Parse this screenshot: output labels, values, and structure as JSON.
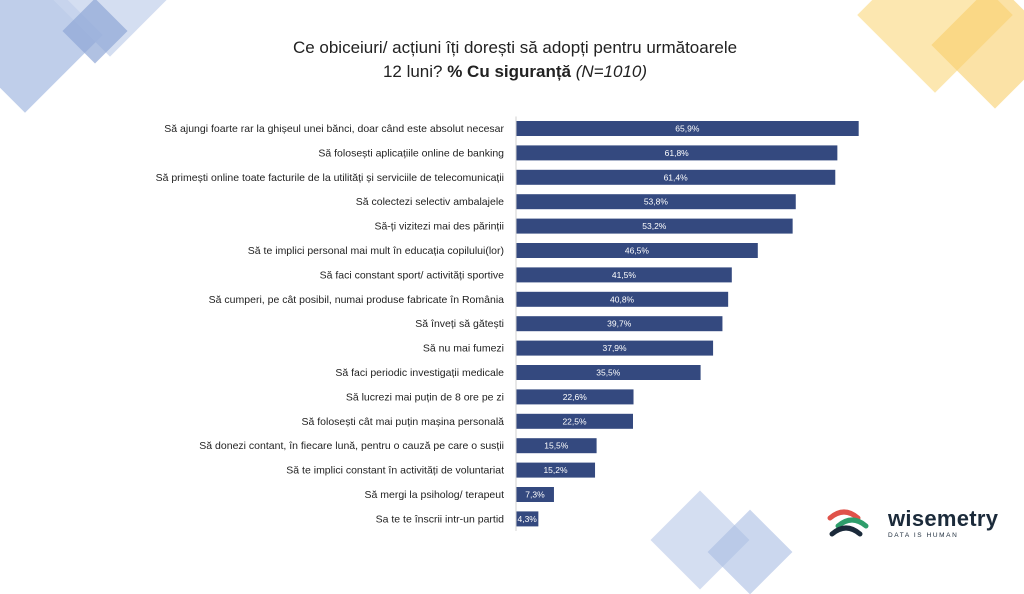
{
  "title": {
    "line1": "Ce obiceiuri/ acțiuni îți dorești să adopți pentru următoarele",
    "line2_prefix": "12 luni? ",
    "line2_bold": "% Cu siguranță",
    "line2_italic": " (N=1010)"
  },
  "chart_data": {
    "type": "bar",
    "orientation": "horizontal",
    "bar_color": "#34497f",
    "categories": [
      "Să ajungi foarte rar la ghișeul unei bănci, doar când este absolut necesar",
      "Să folosești aplicațiile online de banking",
      "Să primești online toate facturile de la utilități și serviciile de telecomunicații",
      "Să colectezi selectiv ambalajele",
      "Să-ți vizitezi mai des părinții",
      "Să te implici personal mai mult în educația copilului(lor)",
      "Să faci constant sport/ activități sportive",
      "Să cumperi, pe cât posibil, numai produse fabricate în România",
      "Să înveți să gătești",
      "Să nu mai fumezi",
      "Să faci periodic investigații medicale",
      "Să lucrezi mai puțin de 8 ore pe zi",
      "Să folosești cât mai puțin mașina personală",
      "Să donezi contant, în fiecare lună, pentru o cauză pe care o susții",
      "Să te implici constant în activități de voluntariat",
      "Să mergi la psiholog/ terapeut",
      "Sa te te înscrii intr-un partid"
    ],
    "values": [
      65.9,
      61.8,
      61.4,
      53.8,
      53.2,
      46.5,
      41.5,
      40.8,
      39.7,
      37.9,
      35.5,
      22.6,
      22.5,
      15.5,
      15.2,
      7.3,
      4.3
    ],
    "value_labels": [
      "65,9%",
      "61,8%",
      "61,4%",
      "53,8%",
      "53,2%",
      "46,5%",
      "41,5%",
      "40,8%",
      "39,7%",
      "37,9%",
      "35,5%",
      "22,6%",
      "22,5%",
      "15,5%",
      "15,2%",
      "7,3%",
      "4,3%"
    ]
  },
  "logo": {
    "name": "wisemetry",
    "tagline": "DATA IS HUMAN",
    "colors": [
      "#e0524a",
      "#2e9e6b",
      "#1b2a3a"
    ]
  },
  "decor_colors": {
    "blue": "#9fb4dd",
    "yellow": "#f8cf6a"
  }
}
